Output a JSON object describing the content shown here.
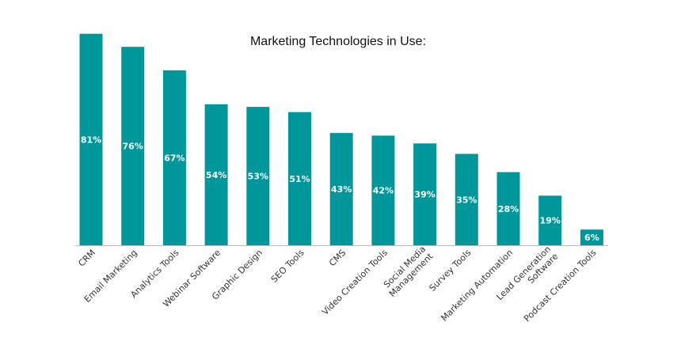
{
  "chart_data": {
    "type": "bar",
    "title": "Marketing Technologies in Use:",
    "categories": [
      "CRM",
      "Email Marketing",
      "Analytics Tools",
      "Webinar Software",
      "Graphic Design",
      "SEO Tools",
      "CMS",
      "Video Creation Tools",
      "Social Media Management",
      "Survey Tools",
      "Marketing Automation",
      "Lead Generation Software",
      "Podcast Creation Tools"
    ],
    "category_lines": [
      [
        "CRM"
      ],
      [
        "Email Marketing"
      ],
      [
        "Analytics Tools"
      ],
      [
        "Webinar Software"
      ],
      [
        "Graphic Design"
      ],
      [
        "SEO Tools"
      ],
      [
        "CMS"
      ],
      [
        "Video Creation Tools"
      ],
      [
        "Social Media",
        "Management"
      ],
      [
        "Survey Tools"
      ],
      [
        "Marketing Automation"
      ],
      [
        "Lead Generation",
        "Software"
      ],
      [
        "Podcast Creation Tools"
      ]
    ],
    "values": [
      81,
      76,
      67,
      54,
      53,
      51,
      43,
      42,
      39,
      35,
      28,
      19,
      6
    ],
    "value_labels": [
      "81%",
      "76%",
      "67%",
      "54%",
      "53%",
      "51%",
      "43%",
      "42%",
      "39%",
      "35%",
      "28%",
      "19%",
      "6%"
    ],
    "ylim": [
      0,
      100
    ],
    "grid": false,
    "legend": "none",
    "bar_color": "#00979a",
    "axis_color": "#bbbbbb"
  }
}
